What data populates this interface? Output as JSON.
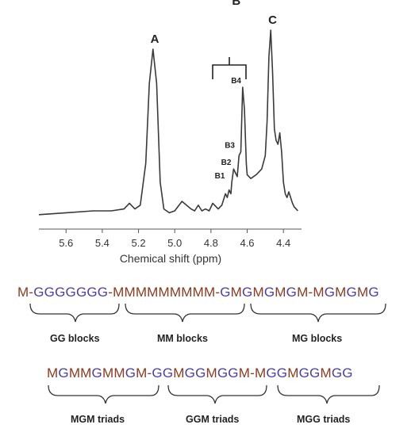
{
  "chart_data": {
    "type": "line",
    "title": "",
    "xlabel": "Chemical shift (ppm)",
    "ylabel": "",
    "xlim": [
      5.75,
      4.3
    ],
    "x_reversed": true,
    "grid": false,
    "x_ticks": [
      "5.6",
      "5.4",
      "5.2",
      "5.0",
      "4.8",
      "4.6",
      "4.4"
    ],
    "x_tick_values": [
      5.6,
      5.4,
      5.2,
      5.0,
      4.8,
      4.6,
      4.4
    ],
    "ylim": [
      0,
      100
    ],
    "series": [
      {
        "x": [
          5.75,
          5.6,
          5.45,
          5.35,
          5.28,
          5.25,
          5.22,
          5.19,
          5.16,
          5.14,
          5.12,
          5.1,
          5.08,
          5.06,
          5.03,
          5.0,
          4.96,
          4.91,
          4.89,
          4.87,
          4.85,
          4.83,
          4.81,
          4.79,
          4.76,
          4.74,
          4.72,
          4.71,
          4.7,
          4.69,
          4.685,
          4.675,
          4.665,
          4.655,
          4.645,
          4.635,
          4.625,
          4.615,
          4.605,
          4.6,
          4.58,
          4.55,
          4.52,
          4.5,
          4.49,
          4.48,
          4.47,
          4.46,
          4.45,
          4.44,
          4.43,
          4.42,
          4.41,
          4.4,
          4.39,
          4.38,
          4.37,
          4.36,
          4.35,
          4.34,
          4.33,
          4.32
        ],
        "y": [
          3,
          4,
          5,
          5,
          6,
          9,
          6,
          8,
          30,
          72,
          90,
          72,
          20,
          6,
          4,
          5,
          10,
          6,
          5,
          8,
          5,
          6,
          5,
          9,
          6,
          8,
          14,
          12,
          16,
          14,
          20,
          27,
          25,
          23,
          34,
          36,
          70,
          58,
          30,
          24,
          22,
          24,
          27,
          34,
          52,
          86,
          100,
          78,
          48,
          42,
          40,
          46,
          36,
          20,
          14,
          12,
          15,
          12,
          9,
          7,
          6,
          5
        ]
      }
    ],
    "peak_labels": [
      {
        "text": "A",
        "x": 5.11,
        "y": 90
      },
      {
        "text": "B",
        "x": 4.66,
        "y": 110
      },
      {
        "text": "C",
        "x": 4.46,
        "y": 100
      },
      {
        "text": "B4",
        "x": 4.62,
        "y": 70
      },
      {
        "text": "B3",
        "x": 4.655,
        "y": 36
      },
      {
        "text": "B2",
        "x": 4.675,
        "y": 27
      },
      {
        "text": "B1",
        "x": 4.71,
        "y": 20
      }
    ]
  },
  "sequences": {
    "row1": [
      {
        "t": "M",
        "c": "m"
      },
      {
        "t": "-",
        "c": "d"
      },
      {
        "t": "GGGGGGG",
        "c": "g"
      },
      {
        "t": "-",
        "c": "d"
      },
      {
        "t": "MMMMMMMMM",
        "c": "m"
      },
      {
        "t": "-",
        "c": "d"
      },
      {
        "t": "G",
        "c": "g"
      },
      {
        "t": "M",
        "c": "m"
      },
      {
        "t": "G",
        "c": "g"
      },
      {
        "t": "M",
        "c": "m"
      },
      {
        "t": "G",
        "c": "g"
      },
      {
        "t": "M",
        "c": "m"
      },
      {
        "t": "G",
        "c": "g"
      },
      {
        "t": "M",
        "c": "m"
      },
      {
        "t": "-",
        "c": "d"
      },
      {
        "t": "M",
        "c": "m"
      },
      {
        "t": "G",
        "c": "g"
      },
      {
        "t": "M",
        "c": "m"
      },
      {
        "t": "G",
        "c": "g"
      },
      {
        "t": "M",
        "c": "m"
      },
      {
        "t": "G",
        "c": "g"
      }
    ],
    "row2": [
      {
        "t": "M",
        "c": "m"
      },
      {
        "t": "G",
        "c": "g"
      },
      {
        "t": "MM",
        "c": "m"
      },
      {
        "t": "G",
        "c": "g"
      },
      {
        "t": "MM",
        "c": "m"
      },
      {
        "t": "G",
        "c": "g"
      },
      {
        "t": "M",
        "c": "m"
      },
      {
        "t": "-",
        "c": "d"
      },
      {
        "t": "GG",
        "c": "g"
      },
      {
        "t": "M",
        "c": "m"
      },
      {
        "t": "GG",
        "c": "g"
      },
      {
        "t": "M",
        "c": "m"
      },
      {
        "t": "GG",
        "c": "g"
      },
      {
        "t": "M",
        "c": "m"
      },
      {
        "t": "-",
        "c": "d"
      },
      {
        "t": "M",
        "c": "m"
      },
      {
        "t": "GG",
        "c": "g"
      },
      {
        "t": "M",
        "c": "m"
      },
      {
        "t": "GG",
        "c": "g"
      },
      {
        "t": "M",
        "c": "m"
      },
      {
        "t": "GG",
        "c": "g"
      }
    ]
  },
  "blocks": {
    "gg": "GG blocks",
    "mm": "MM blocks",
    "mg": "MG blocks",
    "mgm": "MGM triads",
    "ggm": "GGM triads",
    "mgg": "MGG triads"
  },
  "colors": {
    "m": "#8b3a1e",
    "g": "#4a3fa8",
    "d": "#8b3a1e",
    "line": "#3a3a3a"
  }
}
